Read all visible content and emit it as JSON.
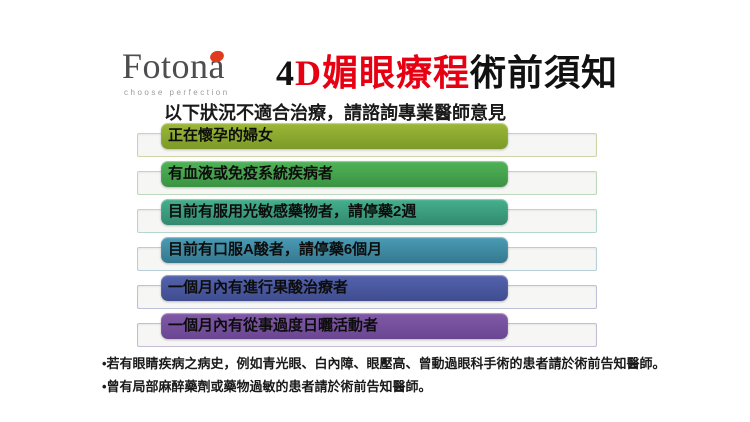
{
  "logo": {
    "text": "Fotona",
    "tagline": "choose perfection",
    "dot_color": "#e13b1f",
    "text_color": "#4d4d4f"
  },
  "title": {
    "prefix": "4",
    "highlight": "D媚眼療程",
    "suffix": "術前須知",
    "highlight_color": "#e60012",
    "text_color": "#111111"
  },
  "subtitle": "以下狀況不適合治療，請諮詢專業醫師意見",
  "rows": [
    {
      "label": "正在懷孕的婦女",
      "color_top": "#9cb838",
      "color_bottom": "#7c9a28",
      "track_border": "#cfd3a8"
    },
    {
      "label": "有血液或免疫系統疾病者",
      "color_top": "#4fb357",
      "color_bottom": "#3b9343",
      "track_border": "#bcd9bc"
    },
    {
      "label": "目前有服用光敏感藥物者，請停藥2週",
      "color_top": "#45b08e",
      "color_bottom": "#328a6e",
      "track_border": "#b5d8cb"
    },
    {
      "label": "目前有口服A酸者，請停藥6個月",
      "color_top": "#4a9cb5",
      "color_bottom": "#35788f",
      "track_border": "#b7cfd8"
    },
    {
      "label": "一個月內有進行果酸治療者",
      "color_top": "#5563ae",
      "color_bottom": "#3f4c8f",
      "track_border": "#bcc0d8"
    },
    {
      "label": "一個月內有從事過度日曬活動者",
      "color_top": "#8159a8",
      "color_bottom": "#6a4691",
      "track_border": "#c6bbd4"
    }
  ],
  "track_fill": "#f6f6f4",
  "notes": [
    "•若有眼睛疾病之病史，例如青光眼、白內障、眼壓高、曾動過眼科手術的患者請於術前告知醫師。",
    "•曾有局部麻醉藥劑或藥物過敏的患者請於術前告知醫師。"
  ]
}
